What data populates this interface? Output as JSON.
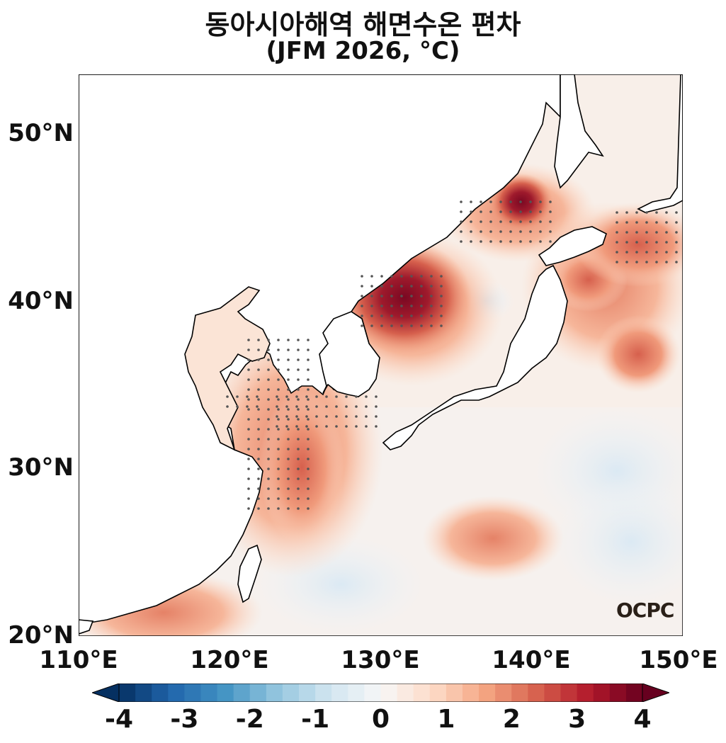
{
  "title": {
    "line1": "동아시아해역 해면수온 편차",
    "line2": "(JFM 2026, °C)"
  },
  "axes": {
    "lat_labels": [
      "50°N",
      "40°N",
      "30°N",
      "20°N"
    ],
    "lon_labels": [
      "110°E",
      "120°E",
      "130°E",
      "140°E",
      "150°E"
    ],
    "lon_range": [
      110,
      150
    ],
    "lat_range": [
      20,
      53.5
    ]
  },
  "colorbar": {
    "ticks": [
      "-4",
      "-3",
      "-2",
      "-1",
      "0",
      "1",
      "2",
      "3",
      "4"
    ],
    "min": -4,
    "max": 4,
    "extend": "both"
  },
  "logo": "OCPC",
  "colors": {
    "neg_strong": "#053061",
    "neg": "#4393c3",
    "neg_light": "#d1e5f0",
    "zero": "#f7f7f7",
    "pos_light": "#fddbc7",
    "pos": "#d6604d",
    "pos_strong": "#67001f",
    "land": "#ffffff",
    "coast": "#000000",
    "stipple": "#555555"
  }
}
